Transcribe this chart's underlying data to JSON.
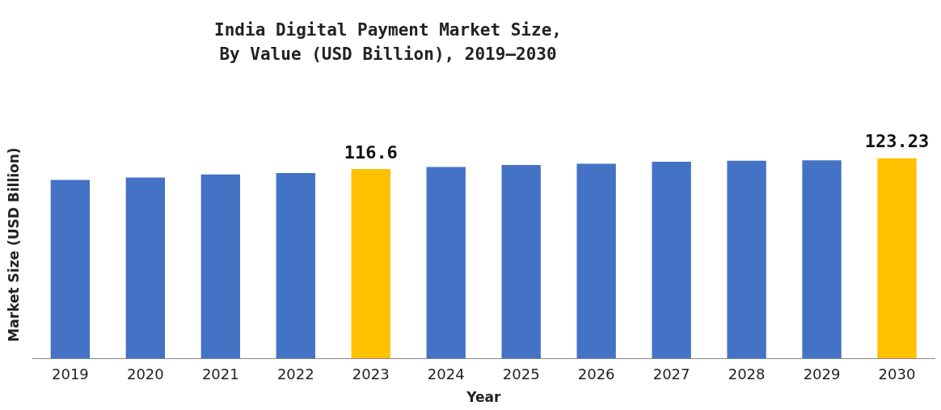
{
  "chart_data": {
    "type": "bar",
    "title": "India Digital Payment Market Size,\nBy Value (USD Billion), 2019–2030",
    "xlabel": "Year",
    "ylabel": "Market Size (USD Billion)",
    "categories": [
      "2019",
      "2020",
      "2021",
      "2022",
      "2023",
      "2024",
      "2025",
      "2026",
      "2027",
      "2028",
      "2029",
      "2030"
    ],
    "values": [
      109.8,
      111.4,
      113.2,
      114.1,
      116.6,
      117.8,
      119.1,
      119.8,
      121.1,
      121.7,
      122,
      123.23
    ],
    "colors": [
      "#4472c4",
      "#4472c4",
      "#4472c4",
      "#4472c4",
      "#ffc000",
      "#4472c4",
      "#4472c4",
      "#4472c4",
      "#4472c4",
      "#4472c4",
      "#4472c4",
      "#ffc000"
    ],
    "value_labels": [
      null,
      null,
      null,
      null,
      "116.6",
      null,
      null,
      null,
      null,
      null,
      null,
      "123.23"
    ],
    "tick_labels": "x",
    "grid": false,
    "legend": false
  }
}
